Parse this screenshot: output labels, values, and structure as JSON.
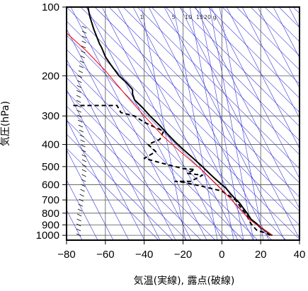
{
  "chart_data": {
    "type": "line",
    "title": "",
    "xlabel": "気温(実線), 露点(破線)",
    "ylabel": "気圧(hPa)",
    "x_axis": {
      "min": -80,
      "max": 40,
      "ticks": [
        -80,
        -60,
        -40,
        -20,
        0,
        20,
        40
      ]
    },
    "y_axis": {
      "scale": "log",
      "min": 1050,
      "max": 100,
      "ticks": [
        100,
        200,
        300,
        400,
        500,
        600,
        700,
        800,
        900,
        1000
      ]
    },
    "grid": true,
    "mixing_ratio_labels": [
      "1",
      "5",
      "10",
      "15",
      "20",
      "g"
    ],
    "series": [
      {
        "style": "solid",
        "color": "#000000",
        "points": [
          [
            26,
            1000
          ],
          [
            25,
            990
          ],
          [
            22,
            950
          ],
          [
            20,
            925
          ],
          [
            18,
            890
          ],
          [
            15,
            850
          ],
          [
            13,
            800
          ],
          [
            11,
            760
          ],
          [
            9,
            720
          ],
          [
            6,
            680
          ],
          [
            4,
            650
          ],
          [
            2,
            620
          ],
          [
            0,
            600
          ],
          [
            -4,
            560
          ],
          [
            -8,
            520
          ],
          [
            -10,
            500
          ],
          [
            -16,
            450
          ],
          [
            -20,
            420
          ],
          [
            -24,
            390
          ],
          [
            -28,
            360
          ],
          [
            -32,
            330
          ],
          [
            -37,
            300
          ],
          [
            -41,
            275
          ],
          [
            -45,
            255
          ],
          [
            -46,
            240
          ],
          [
            -46,
            230
          ],
          [
            -49,
            215
          ],
          [
            -53,
            200
          ],
          [
            -57,
            180
          ],
          [
            -60,
            165
          ],
          [
            -62,
            150
          ],
          [
            -63,
            145
          ],
          [
            -66,
            125
          ],
          [
            -68,
            110
          ],
          [
            -69,
            100
          ]
        ]
      },
      {
        "style": "dashed",
        "color": "#000000",
        "points": [
          [
            25,
            1000
          ],
          [
            23,
            980
          ],
          [
            18,
            950
          ],
          [
            17,
            930
          ],
          [
            16,
            910
          ],
          [
            15,
            890
          ],
          [
            14,
            860
          ],
          [
            13,
            820
          ],
          [
            10,
            760
          ],
          [
            7,
            700
          ],
          [
            0,
            640
          ],
          [
            -10,
            610
          ],
          [
            -20,
            585
          ],
          [
            -24,
            580
          ],
          [
            -16,
            580
          ],
          [
            -10,
            545
          ],
          [
            -18,
            535
          ],
          [
            -14,
            515
          ],
          [
            -20,
            510
          ],
          [
            -30,
            485
          ],
          [
            -40,
            460
          ],
          [
            -38,
            450
          ],
          [
            -34,
            430
          ],
          [
            -38,
            400
          ],
          [
            -32,
            380
          ],
          [
            -30,
            350
          ],
          [
            -40,
            320
          ],
          [
            -45,
            300
          ],
          [
            -52,
            290
          ],
          [
            -54,
            270
          ],
          [
            -70,
            270
          ],
          [
            -78,
            270
          ]
        ]
      },
      {
        "style": "solid",
        "color": "#ff0000",
        "points": [
          [
            26,
            1000
          ],
          [
            18,
            900
          ],
          [
            14,
            850
          ],
          [
            10,
            780
          ],
          [
            5,
            700
          ],
          [
            0,
            630
          ],
          [
            -10,
            520
          ],
          [
            -20,
            440
          ],
          [
            -30,
            370
          ],
          [
            -40,
            300
          ],
          [
            -50,
            240
          ],
          [
            -60,
            190
          ],
          [
            -70,
            155
          ],
          [
            -80,
            130
          ]
        ]
      }
    ],
    "colors": {
      "frame": "#000000",
      "grid": "#555555",
      "isopleths": "#3333dd",
      "parcel": "#ff0000"
    }
  }
}
